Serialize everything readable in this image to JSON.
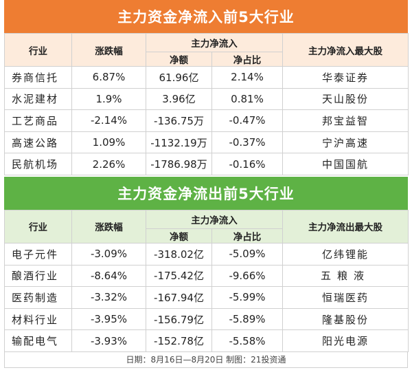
{
  "inflow": {
    "title": "主力资金净流入前5大行业",
    "headers": {
      "industry": "行业",
      "change": "涨跌幅",
      "main_flow": "主力净流入",
      "net_amount": "净额",
      "net_ratio": "净占比",
      "top_stock": "主力净流入最大股"
    },
    "rows": [
      {
        "industry": "券商信托",
        "change": "6.87%",
        "net_amount": "61.96亿",
        "net_ratio": "2.14%",
        "top_stock": "华泰证券"
      },
      {
        "industry": "水泥建材",
        "change": "1.9%",
        "net_amount": "3.96亿",
        "net_ratio": "0.81%",
        "top_stock": "天山股份"
      },
      {
        "industry": "工艺商品",
        "change": "-2.14%",
        "net_amount": "-136.75万",
        "net_ratio": "-0.47%",
        "top_stock": "邦宝益智"
      },
      {
        "industry": "高速公路",
        "change": "1.09%",
        "net_amount": "-1132.19万",
        "net_ratio": "-0.37%",
        "top_stock": "宁沪高速"
      },
      {
        "industry": "民航机场",
        "change": "2.26%",
        "net_amount": "-1786.98万",
        "net_ratio": "-0.16%",
        "top_stock": "中国国航"
      }
    ]
  },
  "outflow": {
    "title": "主力资金净流出前5大行业",
    "headers": {
      "industry": "行业",
      "change": "涨跌幅",
      "main_flow": "主力净流入",
      "net_amount": "净额",
      "net_ratio": "净占比",
      "top_stock": "主力净流出最大股"
    },
    "rows": [
      {
        "industry": "电子元件",
        "change": "-3.09%",
        "net_amount": "-318.02亿",
        "net_ratio": "-5.09%",
        "top_stock": "亿纬锂能"
      },
      {
        "industry": "酿酒行业",
        "change": "-8.64%",
        "net_amount": "-175.42亿",
        "net_ratio": "-9.66%",
        "top_stock": "五粮液"
      },
      {
        "industry": "医药制造",
        "change": "-3.32%",
        "net_amount": "-167.94亿",
        "net_ratio": "-5.99%",
        "top_stock": "恒瑞医药"
      },
      {
        "industry": "材料行业",
        "change": "-3.95%",
        "net_amount": "-156.79亿",
        "net_ratio": "-5.89%",
        "top_stock": "隆基股份"
      },
      {
        "industry": "输配电气",
        "change": "-3.93%",
        "net_amount": "-152.78亿",
        "net_ratio": "-5.58%",
        "top_stock": "阳光电源"
      }
    ]
  },
  "footer": "日期：8月16日—8月20日  制图：21投资通",
  "colors": {
    "inflow_banner": "#ee7d32",
    "outflow_banner": "#5eb245",
    "inflow_header": "#fdebdc",
    "outflow_header": "#e3f0d8"
  }
}
